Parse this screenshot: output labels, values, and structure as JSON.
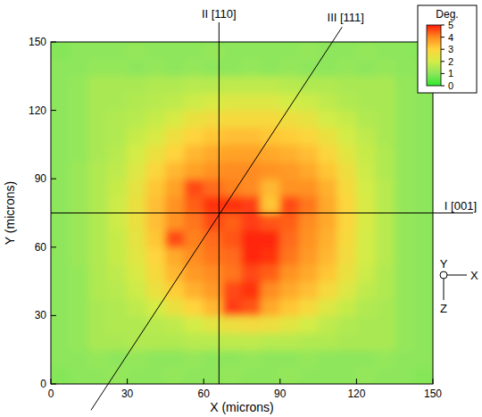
{
  "chart_data": {
    "type": "heatmap",
    "x_label": "X (microns)",
    "y_label": "Y (microns)",
    "xlim": [
      0,
      150
    ],
    "ylim": [
      0,
      150
    ],
    "xticks": [
      0,
      30,
      60,
      90,
      120,
      150
    ],
    "yticks": [
      0,
      30,
      60,
      90,
      120,
      150
    ],
    "x": [
      3.75,
      11.25,
      18.75,
      26.25,
      33.75,
      41.25,
      48.75,
      56.25,
      63.75,
      71.25,
      78.75,
      86.25,
      93.75,
      101.25,
      108.75,
      116.25,
      123.75,
      131.25,
      138.75,
      146.25
    ],
    "y": [
      3.75,
      11.25,
      18.75,
      26.25,
      33.75,
      41.25,
      48.75,
      56.25,
      63.75,
      71.25,
      78.75,
      86.25,
      93.75,
      101.25,
      108.75,
      116.25,
      123.75,
      131.25,
      138.75,
      146.25
    ],
    "z": [
      [
        0.9,
        1.0,
        1.0,
        1.1,
        1.0,
        1.0,
        1.1,
        1.0,
        1.0,
        1.1,
        1.0,
        1.0,
        1.1,
        1.0,
        1.0,
        1.0,
        1.1,
        1.0,
        1.0,
        0.9
      ],
      [
        1.0,
        1.0,
        1.1,
        1.0,
        1.1,
        1.0,
        1.0,
        1.1,
        1.0,
        1.0,
        1.1,
        1.0,
        1.0,
        1.1,
        1.0,
        1.0,
        1.0,
        1.1,
        1.0,
        1.0
      ],
      [
        1.0,
        1.1,
        1.4,
        1.4,
        1.5,
        1.5,
        1.5,
        1.6,
        1.6,
        1.7,
        1.7,
        1.6,
        1.6,
        1.5,
        1.5,
        1.4,
        1.4,
        1.4,
        1.1,
        1.0
      ],
      [
        1.0,
        1.1,
        1.4,
        1.5,
        1.5,
        1.6,
        1.7,
        2.0,
        2.3,
        2.6,
        2.7,
        2.6,
        2.3,
        2.0,
        1.7,
        1.5,
        1.4,
        1.4,
        1.1,
        1.0
      ],
      [
        1.0,
        1.1,
        1.4,
        1.5,
        1.7,
        2.0,
        2.5,
        3.0,
        3.4,
        4.7,
        4.5,
        3.6,
        3.2,
        2.8,
        2.2,
        1.8,
        1.5,
        1.4,
        1.1,
        1.0
      ],
      [
        1.0,
        1.1,
        1.5,
        1.6,
        1.9,
        2.5,
        3.1,
        3.5,
        3.8,
        4.6,
        4.8,
        4.0,
        3.6,
        3.3,
        2.8,
        2.2,
        1.7,
        1.5,
        1.1,
        1.0
      ],
      [
        1.0,
        1.1,
        1.5,
        1.7,
        2.1,
        2.8,
        3.4,
        3.8,
        4.0,
        4.2,
        4.6,
        4.4,
        3.9,
        3.6,
        3.2,
        2.5,
        1.9,
        1.5,
        1.1,
        1.0
      ],
      [
        1.0,
        1.2,
        1.5,
        1.8,
        2.3,
        3.0,
        3.6,
        4.0,
        4.2,
        4.3,
        4.9,
        4.8,
        4.2,
        3.8,
        3.4,
        2.7,
        2.0,
        1.6,
        1.1,
        1.0
      ],
      [
        1.0,
        1.2,
        1.5,
        1.8,
        2.4,
        3.2,
        4.6,
        4.1,
        4.3,
        4.5,
        4.9,
        4.9,
        4.3,
        3.9,
        3.5,
        2.8,
        2.0,
        1.6,
        1.1,
        1.0
      ],
      [
        1.0,
        1.2,
        1.5,
        1.9,
        2.5,
        3.3,
        3.9,
        4.2,
        4.6,
        4.4,
        4.7,
        4.5,
        4.4,
        4.0,
        3.6,
        2.9,
        2.1,
        1.6,
        1.1,
        1.0
      ],
      [
        1.0,
        1.2,
        1.5,
        1.9,
        2.5,
        3.3,
        3.9,
        4.4,
        4.8,
        4.8,
        4.7,
        3.2,
        4.6,
        4.2,
        3.6,
        2.9,
        2.1,
        1.6,
        1.1,
        1.0
      ],
      [
        1.0,
        1.2,
        1.5,
        1.8,
        2.4,
        3.2,
        3.7,
        4.6,
        4.3,
        4.1,
        4.0,
        3.4,
        3.9,
        3.9,
        3.5,
        2.8,
        2.0,
        1.6,
        1.1,
        1.0
      ],
      [
        1.0,
        1.2,
        1.5,
        1.7,
        2.2,
        2.9,
        3.4,
        3.7,
        3.9,
        4.0,
        4.0,
        3.9,
        3.8,
        3.6,
        3.2,
        2.6,
        1.9,
        1.5,
        1.1,
        1.0
      ],
      [
        1.0,
        1.1,
        1.4,
        1.6,
        2.0,
        2.5,
        3.0,
        3.4,
        3.6,
        3.7,
        3.7,
        3.6,
        3.5,
        3.3,
        2.9,
        2.3,
        1.8,
        1.5,
        1.1,
        1.0
      ],
      [
        1.0,
        1.1,
        1.4,
        1.5,
        1.8,
        2.1,
        2.6,
        3.0,
        3.2,
        3.3,
        3.3,
        3.2,
        3.1,
        2.9,
        2.5,
        2.0,
        1.7,
        1.4,
        1.1,
        1.0
      ],
      [
        1.0,
        1.1,
        1.4,
        1.5,
        1.6,
        1.8,
        2.1,
        2.5,
        2.7,
        2.8,
        2.8,
        2.8,
        2.6,
        2.4,
        2.0,
        1.8,
        1.5,
        1.4,
        1.1,
        1.0
      ],
      [
        1.0,
        1.1,
        1.4,
        1.4,
        1.5,
        1.6,
        1.7,
        1.9,
        2.1,
        2.2,
        2.2,
        2.2,
        2.0,
        1.9,
        1.7,
        1.5,
        1.4,
        1.4,
        1.1,
        1.0
      ],
      [
        1.0,
        1.1,
        1.4,
        1.4,
        1.4,
        1.5,
        1.5,
        1.6,
        1.6,
        1.7,
        1.7,
        1.7,
        1.6,
        1.5,
        1.5,
        1.4,
        1.4,
        1.4,
        1.1,
        1.0
      ],
      [
        1.0,
        1.0,
        1.1,
        1.1,
        1.0,
        1.1,
        1.0,
        1.1,
        1.0,
        1.0,
        1.1,
        1.0,
        1.1,
        1.0,
        1.0,
        1.1,
        1.0,
        1.1,
        1.0,
        1.0
      ],
      [
        0.9,
        1.0,
        1.0,
        1.0,
        1.1,
        1.0,
        1.0,
        1.0,
        1.1,
        1.0,
        1.0,
        1.0,
        1.0,
        1.1,
        1.0,
        1.0,
        1.1,
        1.0,
        1.0,
        0.9
      ]
    ],
    "colorbar": {
      "label": "Deg.",
      "range": [
        0,
        5
      ],
      "ticks": [
        0,
        1,
        2,
        3,
        4,
        5
      ]
    },
    "annotations": [
      {
        "label": "I [001]",
        "y": 75
      },
      {
        "label": "II [110]",
        "x": 66
      },
      {
        "label": "III [111]",
        "points": [
          [
            22.5,
            0
          ],
          [
            110.5,
            150
          ]
        ]
      }
    ],
    "axis_triad": {
      "center": "Y",
      "right": "X",
      "down": "Z"
    }
  }
}
